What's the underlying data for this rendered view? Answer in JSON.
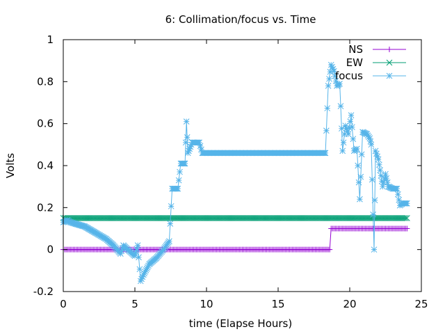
{
  "chart_data": {
    "type": "line",
    "title": "6: Collimation/focus vs. Time",
    "xlabel": "time (Elapse Hours)",
    "ylabel": "Volts",
    "xlim": [
      0,
      25
    ],
    "ylim": [
      -0.2,
      1
    ],
    "x_ticks": [
      "0",
      "5",
      "10",
      "15",
      "20",
      "25"
    ],
    "y_ticks": [
      "-0.2",
      "0",
      "0.2",
      "0.4",
      "0.6",
      "0.8",
      "1"
    ],
    "grid": false,
    "legend_position": "top-right",
    "series": [
      {
        "name": "NS",
        "color": "#9400d3",
        "marker": "plus",
        "points": [
          [
            0,
            0
          ],
          [
            18.6,
            0
          ],
          [
            18.7,
            0.1
          ],
          [
            24,
            0.1
          ]
        ]
      },
      {
        "name": "EW",
        "color": "#009e73",
        "marker": "cross",
        "points": [
          [
            0,
            0.15
          ],
          [
            24,
            0.15
          ]
        ]
      },
      {
        "name": "focus",
        "color": "#56b4e9",
        "marker": "star",
        "points": [
          [
            0,
            0.13
          ],
          [
            0.3,
            0.14
          ],
          [
            0.5,
            0.13
          ],
          [
            1.0,
            0.12
          ],
          [
            1.5,
            0.11
          ],
          [
            2.0,
            0.09
          ],
          [
            2.5,
            0.07
          ],
          [
            3.0,
            0.05
          ],
          [
            3.5,
            0.02
          ],
          [
            4.0,
            -0.02
          ],
          [
            4.2,
            0.02
          ],
          [
            4.5,
            0.0
          ],
          [
            5.0,
            -0.03
          ],
          [
            5.2,
            0.02
          ],
          [
            5.4,
            -0.15
          ],
          [
            5.6,
            -0.12
          ],
          [
            6.0,
            -0.07
          ],
          [
            6.5,
            -0.04
          ],
          [
            7.0,
            0.0
          ],
          [
            7.4,
            0.04
          ],
          [
            7.6,
            0.29
          ],
          [
            8.0,
            0.29
          ],
          [
            8.2,
            0.41
          ],
          [
            8.5,
            0.41
          ],
          [
            8.6,
            0.61
          ],
          [
            8.7,
            0.46
          ],
          [
            9.0,
            0.51
          ],
          [
            9.5,
            0.51
          ],
          [
            9.7,
            0.46
          ],
          [
            12.0,
            0.46
          ],
          [
            15.0,
            0.46
          ],
          [
            18.3,
            0.46
          ],
          [
            18.5,
            0.78
          ],
          [
            18.7,
            0.88
          ],
          [
            18.9,
            0.85
          ],
          [
            19.1,
            0.78
          ],
          [
            19.3,
            0.79
          ],
          [
            19.5,
            0.47
          ],
          [
            19.7,
            0.59
          ],
          [
            19.9,
            0.55
          ],
          [
            20.1,
            0.64
          ],
          [
            20.3,
            0.47
          ],
          [
            20.5,
            0.48
          ],
          [
            20.7,
            0.24
          ],
          [
            20.9,
            0.56
          ],
          [
            21.2,
            0.55
          ],
          [
            21.4,
            0.53
          ],
          [
            21.5,
            0.5
          ],
          [
            21.7,
            0.0
          ],
          [
            21.8,
            0.47
          ],
          [
            22.0,
            0.43
          ],
          [
            22.3,
            0.3
          ],
          [
            22.5,
            0.36
          ],
          [
            22.7,
            0.3
          ],
          [
            23.0,
            0.29
          ],
          [
            23.3,
            0.29
          ],
          [
            23.5,
            0.21
          ],
          [
            23.7,
            0.22
          ],
          [
            24.0,
            0.22
          ]
        ]
      }
    ]
  }
}
